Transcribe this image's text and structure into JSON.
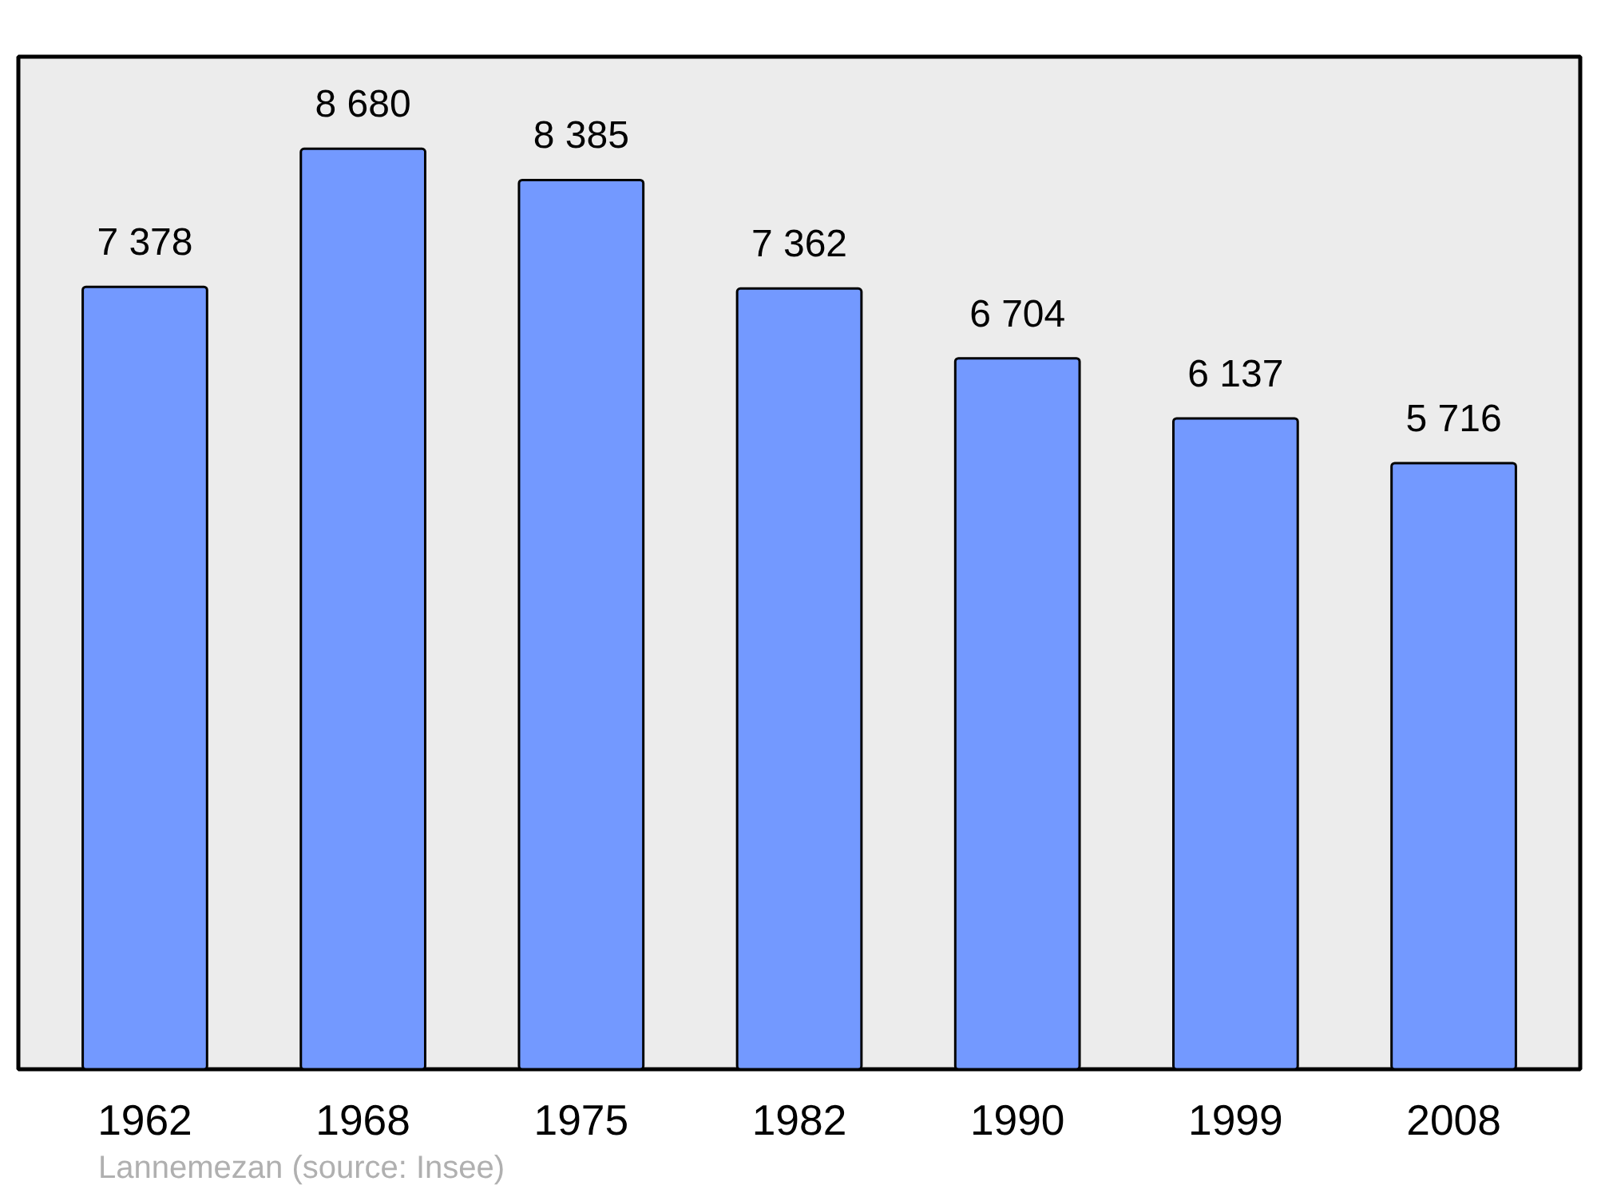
{
  "chart_data": {
    "type": "bar",
    "categories": [
      "1962",
      "1968",
      "1975",
      "1982",
      "1990",
      "1999",
      "2008"
    ],
    "values": [
      7378,
      8680,
      8385,
      7362,
      6704,
      6137,
      5716
    ],
    "value_labels": [
      "7 378",
      "8 680",
      "8 385",
      "7 362",
      "6 704",
      "6 137",
      "5 716"
    ],
    "color": "#7399ff",
    "annotations": [
      "Lannemezan    (source: Insee)"
    ]
  }
}
